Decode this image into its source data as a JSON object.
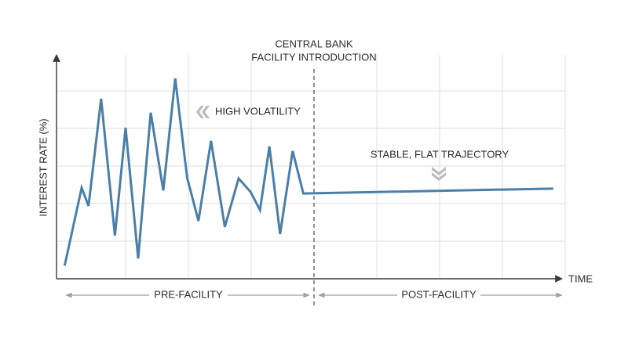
{
  "chart_data": {
    "type": "line",
    "y_label": "INTEREST RATE (%)",
    "x_label": "TIME",
    "event_label": [
      "CENTRAL BANK",
      "FACILITY INTRODUCTION"
    ],
    "event_x": 4,
    "annotations": [
      "HIGH VOLATILITY",
      "STABLE, FLAT TRAJECTORY"
    ],
    "regions": [
      "PRE-FACILITY",
      "POST-FACILITY"
    ],
    "x": [
      0.03,
      0.3,
      0.41,
      0.61,
      0.83,
      1.0,
      1.2,
      1.4,
      1.6,
      1.79,
      1.98,
      2.16,
      2.36,
      2.58,
      2.8,
      2.99,
      3.14,
      3.29,
      3.46,
      3.66,
      3.83,
      7.81
    ],
    "series": [
      {
        "color": "#4a7fa8",
        "values": [
          0.35,
          2.42,
          1.94,
          4.79,
          1.15,
          4.02,
          0.54,
          4.42,
          2.35,
          5.33,
          2.69,
          1.54,
          3.67,
          1.38,
          2.67,
          2.31,
          1.83,
          3.52,
          1.19,
          3.4,
          2.27,
          2.4
        ]
      }
    ],
    "xlim": [
      -0.1,
      8
    ],
    "ylim": [
      0,
      5.96
    ],
    "xgrid": [
      1,
      2,
      3,
      5,
      6,
      7,
      8
    ],
    "ygrid": [
      1,
      2,
      3,
      4,
      5
    ],
    "grid": true
  }
}
